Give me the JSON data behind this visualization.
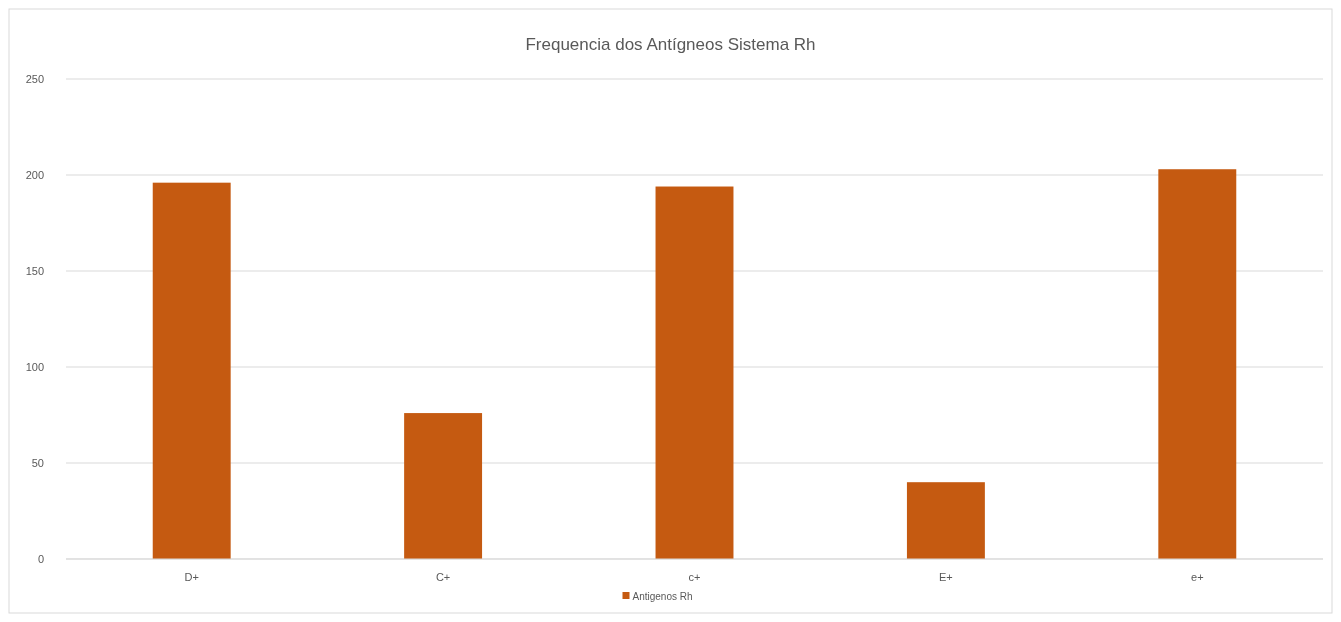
{
  "chart_data": {
    "type": "bar",
    "title": "Frequencia dos Antígneos Sistema Rh",
    "categories": [
      "D+",
      "C+",
      "c+",
      "E+",
      "e+"
    ],
    "series": [
      {
        "name": "Antigenos Rh",
        "color": "#c55a11",
        "values": [
          196,
          76,
          194,
          40,
          203
        ]
      }
    ],
    "ylim": [
      0,
      250
    ],
    "yticks": [
      0,
      50,
      100,
      150,
      200,
      250
    ],
    "grid": "y",
    "legend": "bottom"
  }
}
